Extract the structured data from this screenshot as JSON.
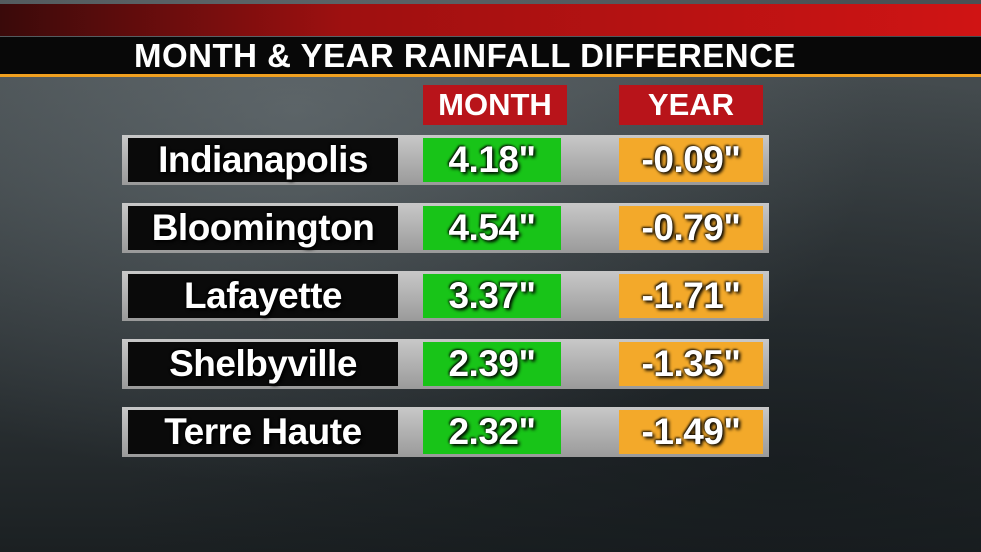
{
  "title": "MONTH & YEAR RAINFALL DIFFERENCE",
  "table": {
    "header": [
      "MONTH",
      "YEAR"
    ],
    "rows": [
      [
        "Indianapolis",
        "4.18\"",
        "-0.09\""
      ],
      [
        "Bloomington",
        "4.54\"",
        "-0.79\""
      ],
      [
        "Lafayette",
        "3.37\"",
        "-1.71\""
      ],
      [
        "Shelbyville",
        "2.39\"",
        "-1.35\""
      ],
      [
        "Terre Haute",
        "2.32\"",
        "-1.49\""
      ]
    ]
  }
}
